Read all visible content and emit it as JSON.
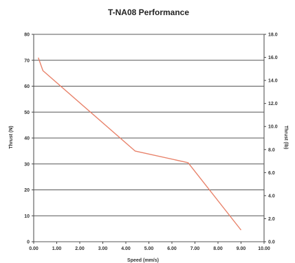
{
  "chart_data": {
    "type": "line",
    "title": "T-NA08 Performance",
    "xlabel": "Speed (mm/s)",
    "ylabel": "Thrust (N)",
    "y2label": "Thrust (lb)",
    "xlim": [
      0,
      10
    ],
    "ylim": [
      0,
      80
    ],
    "y2lim": [
      0,
      18
    ],
    "x_ticks": [
      "0.00",
      "1.00",
      "2.00",
      "3.00",
      "4.00",
      "5.00",
      "6.00",
      "7.00",
      "8.00",
      "9.00",
      "10.00"
    ],
    "y_ticks": [
      "0",
      "10",
      "20",
      "30",
      "40",
      "50",
      "60",
      "70",
      "80"
    ],
    "y2_ticks": [
      "0.0",
      "2.0",
      "4.0",
      "6.0",
      "8.0",
      "10.0",
      "12.0",
      "14.0",
      "16.0",
      "18.0"
    ],
    "grid": "horizontal",
    "line_color": "#e8826a",
    "series": [
      {
        "x": [
          0.2,
          0.4,
          4.4,
          6.7,
          9.0
        ],
        "y": [
          71,
          66,
          35,
          30.5,
          4.5
        ]
      }
    ]
  }
}
